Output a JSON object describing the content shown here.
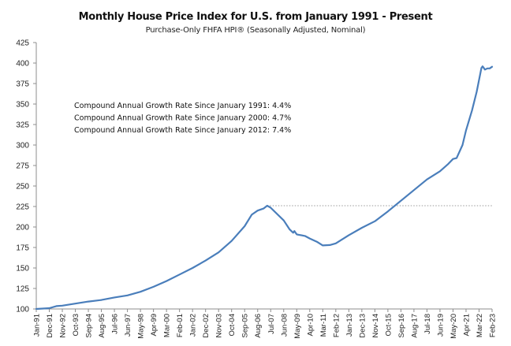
{
  "chart_data": {
    "type": "line",
    "title": "Monthly House Price Index for U.S. from January 1991 - Present",
    "subtitle": "Purchase-Only FHFA HPI® (Seasonally Adjusted, Nominal)",
    "xlabel": "",
    "ylabel": "",
    "ylim": [
      100,
      425
    ],
    "yticks": [
      100,
      125,
      150,
      175,
      200,
      225,
      250,
      275,
      300,
      325,
      350,
      375,
      400,
      425
    ],
    "xticks": [
      "Jan-91",
      "Dec-91",
      "Nov-92",
      "Oct-93",
      "Sep-94",
      "Aug-95",
      "Jul-96",
      "Jun-97",
      "May-98",
      "Apr-99",
      "Mar-00",
      "Feb-01",
      "Jan-02",
      "Dec-02",
      "Nov-03",
      "Oct-04",
      "Sep-05",
      "Aug-06",
      "Jul-07",
      "Jun-08",
      "May-09",
      "Apr-10",
      "Mar-11",
      "Feb-12",
      "Jan-13",
      "Dec-13",
      "Nov-14",
      "Oct-15",
      "Sep-16",
      "Aug-17",
      "Jul-18",
      "Jun-19",
      "May-20",
      "Apr-21",
      "Mar-22",
      "Feb-23"
    ],
    "grid": false,
    "reference_line": {
      "value": 226,
      "style": "dotted",
      "from": "Apr-07",
      "to": "Feb-23"
    },
    "annotations": [
      "Compound Annual Growth Rate Since January 1991:  4.4%",
      "Compound Annual Growth Rate Since January 2000:  4.7%",
      "Compound Annual Growth Rate Since January 2012:  7.4%"
    ],
    "series": [
      {
        "name": "Purchase-Only FHFA HPI (SA)",
        "color": "#4a7ebb",
        "points": [
          [
            "Jan-91",
            100.0
          ],
          [
            "Dec-91",
            101.0
          ],
          [
            "Jun-92",
            103.5
          ],
          [
            "Nov-92",
            104.0
          ],
          [
            "Oct-93",
            106.5
          ],
          [
            "Sep-94",
            109.0
          ],
          [
            "Aug-95",
            111.0
          ],
          [
            "Jul-96",
            114.0
          ],
          [
            "Jun-97",
            116.5
          ],
          [
            "May-98",
            121.0
          ],
          [
            "Apr-99",
            127.0
          ],
          [
            "Mar-00",
            134.0
          ],
          [
            "Feb-01",
            142.0
          ],
          [
            "Jan-02",
            150.0
          ],
          [
            "Dec-02",
            159.0
          ],
          [
            "Nov-03",
            169.0
          ],
          [
            "Oct-04",
            183.0
          ],
          [
            "Sep-05",
            201.0
          ],
          [
            "Mar-06",
            215.0
          ],
          [
            "Aug-06",
            220.0
          ],
          [
            "Jan-07",
            222.5
          ],
          [
            "Apr-07",
            226.0
          ],
          [
            "Jul-07",
            223.5
          ],
          [
            "Jun-08",
            208.0
          ],
          [
            "Nov-08",
            197.0
          ],
          [
            "Feb-09",
            193.0
          ],
          [
            "Mar-09",
            195.0
          ],
          [
            "May-09",
            191.0
          ],
          [
            "Dec-09",
            189.0
          ],
          [
            "Apr-10",
            186.0
          ],
          [
            "Oct-10",
            182.0
          ],
          [
            "Mar-11",
            177.5
          ],
          [
            "Sep-11",
            178.0
          ],
          [
            "Feb-12",
            180.0
          ],
          [
            "Jan-13",
            190.0
          ],
          [
            "Dec-13",
            199.0
          ],
          [
            "Nov-14",
            207.0
          ],
          [
            "Oct-15",
            219.0
          ],
          [
            "Sep-16",
            232.0
          ],
          [
            "Aug-17",
            245.0
          ],
          [
            "Jul-18",
            258.0
          ],
          [
            "Jun-19",
            268.0
          ],
          [
            "Jan-20",
            277.0
          ],
          [
            "May-20",
            283.0
          ],
          [
            "Aug-20",
            284.0
          ],
          [
            "Jan-21",
            300.0
          ],
          [
            "Apr-21",
            318.0
          ],
          [
            "Sep-21",
            342.0
          ],
          [
            "Jan-22",
            365.0
          ],
          [
            "May-22",
            394.0
          ],
          [
            "Jun-22",
            396.0
          ],
          [
            "Aug-22",
            392.0
          ],
          [
            "Oct-22",
            393.5
          ],
          [
            "Dec-22",
            393.5
          ],
          [
            "Feb-23",
            395.5
          ]
        ]
      }
    ]
  }
}
